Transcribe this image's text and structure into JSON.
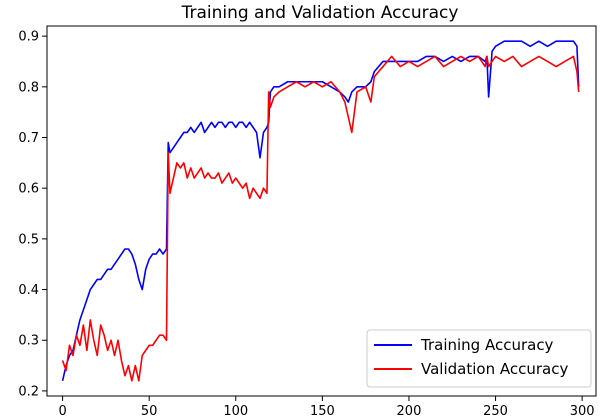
{
  "chart_data": {
    "type": "line",
    "title": "Training and Validation Accuracy",
    "xlabel": "",
    "ylabel": "",
    "xlim": [
      -9,
      308
    ],
    "ylim": [
      0.19,
      0.92
    ],
    "xticks": [
      0,
      50,
      100,
      150,
      200,
      250,
      300
    ],
    "yticks": [
      0.2,
      0.3,
      0.4,
      0.5,
      0.6,
      0.7,
      0.8,
      0.9
    ],
    "grid": false,
    "legend_position": "lower-right",
    "series": [
      {
        "name": "Training Accuracy",
        "color": "#0000ff",
        "x": [
          0,
          2,
          4,
          6,
          8,
          10,
          12,
          14,
          16,
          18,
          20,
          22,
          24,
          26,
          28,
          30,
          32,
          34,
          36,
          38,
          40,
          42,
          44,
          46,
          48,
          50,
          52,
          54,
          56,
          58,
          60,
          61,
          62,
          64,
          66,
          68,
          70,
          72,
          74,
          76,
          78,
          80,
          82,
          84,
          86,
          88,
          90,
          92,
          94,
          96,
          98,
          100,
          102,
          104,
          106,
          108,
          110,
          112,
          114,
          116,
          118,
          119,
          120,
          122,
          125,
          130,
          135,
          140,
          145,
          150,
          155,
          160,
          163,
          165,
          167,
          170,
          175,
          178,
          180,
          185,
          190,
          195,
          200,
          205,
          210,
          215,
          220,
          225,
          230,
          235,
          240,
          244,
          245,
          246,
          248,
          250,
          255,
          260,
          265,
          270,
          275,
          280,
          285,
          290,
          295,
          297,
          298
        ],
        "values": [
          0.22,
          0.25,
          0.27,
          0.28,
          0.31,
          0.34,
          0.36,
          0.38,
          0.4,
          0.41,
          0.42,
          0.42,
          0.43,
          0.44,
          0.44,
          0.45,
          0.46,
          0.47,
          0.48,
          0.48,
          0.47,
          0.45,
          0.42,
          0.4,
          0.44,
          0.46,
          0.47,
          0.47,
          0.48,
          0.47,
          0.48,
          0.69,
          0.67,
          0.68,
          0.69,
          0.7,
          0.71,
          0.71,
          0.72,
          0.71,
          0.72,
          0.73,
          0.71,
          0.72,
          0.73,
          0.72,
          0.73,
          0.73,
          0.72,
          0.73,
          0.73,
          0.72,
          0.73,
          0.73,
          0.72,
          0.73,
          0.72,
          0.71,
          0.66,
          0.71,
          0.72,
          0.73,
          0.79,
          0.8,
          0.8,
          0.81,
          0.81,
          0.81,
          0.81,
          0.81,
          0.8,
          0.79,
          0.78,
          0.77,
          0.79,
          0.8,
          0.8,
          0.81,
          0.83,
          0.85,
          0.85,
          0.85,
          0.85,
          0.85,
          0.86,
          0.86,
          0.85,
          0.86,
          0.85,
          0.86,
          0.86,
          0.85,
          0.86,
          0.78,
          0.87,
          0.88,
          0.89,
          0.89,
          0.89,
          0.88,
          0.89,
          0.88,
          0.89,
          0.89,
          0.89,
          0.88,
          0.8
        ]
      },
      {
        "name": "Validation Accuracy",
        "color": "#ff0000",
        "x": [
          0,
          2,
          4,
          6,
          8,
          10,
          12,
          14,
          16,
          18,
          20,
          22,
          24,
          26,
          28,
          30,
          32,
          34,
          36,
          38,
          40,
          42,
          44,
          46,
          48,
          50,
          52,
          54,
          56,
          58,
          60,
          61,
          62,
          64,
          66,
          68,
          70,
          72,
          74,
          76,
          78,
          80,
          82,
          84,
          86,
          88,
          90,
          92,
          94,
          96,
          98,
          100,
          102,
          104,
          106,
          108,
          110,
          112,
          114,
          116,
          118,
          119,
          120,
          122,
          125,
          130,
          135,
          140,
          145,
          150,
          155,
          160,
          163,
          165,
          167,
          170,
          175,
          178,
          180,
          185,
          190,
          195,
          200,
          205,
          210,
          215,
          220,
          225,
          230,
          235,
          240,
          244,
          245,
          246,
          248,
          250,
          255,
          260,
          265,
          270,
          275,
          280,
          285,
          290,
          295,
          297,
          298
        ],
        "values": [
          0.26,
          0.24,
          0.29,
          0.27,
          0.31,
          0.29,
          0.33,
          0.28,
          0.34,
          0.3,
          0.27,
          0.33,
          0.31,
          0.28,
          0.3,
          0.27,
          0.3,
          0.26,
          0.23,
          0.25,
          0.22,
          0.25,
          0.22,
          0.27,
          0.28,
          0.29,
          0.29,
          0.3,
          0.31,
          0.31,
          0.3,
          0.67,
          0.59,
          0.62,
          0.65,
          0.64,
          0.65,
          0.62,
          0.64,
          0.62,
          0.63,
          0.64,
          0.62,
          0.63,
          0.62,
          0.62,
          0.63,
          0.61,
          0.62,
          0.63,
          0.61,
          0.62,
          0.61,
          0.6,
          0.61,
          0.58,
          0.6,
          0.59,
          0.58,
          0.6,
          0.59,
          0.79,
          0.76,
          0.78,
          0.79,
          0.8,
          0.81,
          0.8,
          0.81,
          0.8,
          0.81,
          0.79,
          0.77,
          0.74,
          0.71,
          0.79,
          0.8,
          0.77,
          0.82,
          0.84,
          0.86,
          0.84,
          0.85,
          0.84,
          0.85,
          0.86,
          0.84,
          0.85,
          0.86,
          0.85,
          0.86,
          0.84,
          0.86,
          0.84,
          0.85,
          0.86,
          0.85,
          0.86,
          0.84,
          0.85,
          0.86,
          0.85,
          0.84,
          0.85,
          0.86,
          0.83,
          0.79
        ]
      }
    ]
  }
}
